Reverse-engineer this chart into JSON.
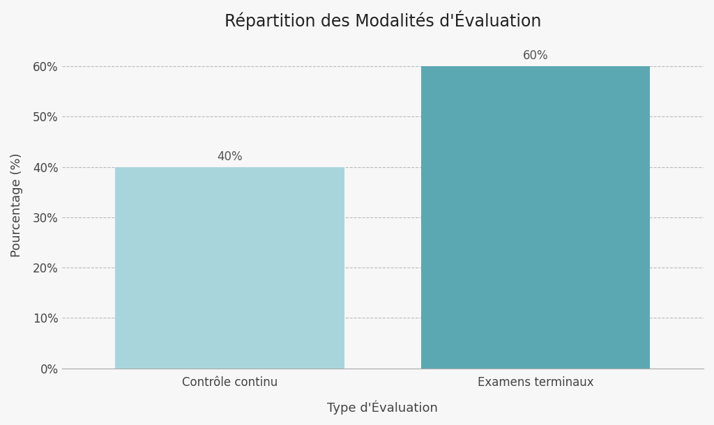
{
  "title": "Répartition des Modalités d'Évaluation",
  "categories": [
    "Contrôle continu",
    "Examens terminaux"
  ],
  "values": [
    40,
    60
  ],
  "bar_colors": [
    "#a8d5dc",
    "#5ba8b2"
  ],
  "xlabel": "Type d'Évaluation",
  "ylabel": "Pourcentage (%)",
  "ylim": [
    0,
    65
  ],
  "yticks": [
    0,
    10,
    20,
    30,
    40,
    50,
    60
  ],
  "ytick_labels": [
    "0%",
    "10%",
    "20%",
    "30%",
    "40%",
    "50%",
    "60%"
  ],
  "background_color": "#f7f7f7",
  "grid_color": "#bbbbbb",
  "title_fontsize": 17,
  "label_fontsize": 13,
  "tick_fontsize": 12,
  "annotation_fontsize": 12,
  "bar_width": 0.75
}
